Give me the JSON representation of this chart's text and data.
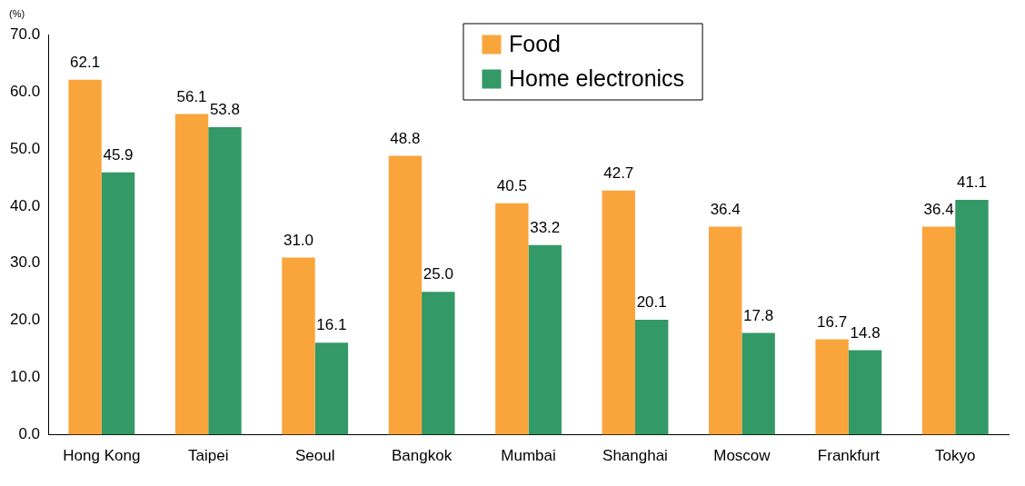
{
  "chart_data": {
    "type": "bar",
    "ylabel": "(%)",
    "categories": [
      "Hong Kong",
      "Taipei",
      "Seoul",
      "Bangkok",
      "Mumbai",
      "Shanghai",
      "Moscow",
      "Frankfurt",
      "Tokyo"
    ],
    "series": [
      {
        "name": "Food",
        "color": "#f9a53c",
        "values": [
          62.1,
          56.1,
          31.0,
          48.8,
          40.5,
          42.7,
          36.4,
          16.7,
          36.4
        ],
        "value_labels": [
          "62.1",
          "56.1",
          "31.0",
          "48.8",
          "40.5",
          "42.7",
          "36.4",
          "16.7",
          "36.4"
        ]
      },
      {
        "name": "Home electronics",
        "color": "#339966",
        "values": [
          45.9,
          53.8,
          16.1,
          25.0,
          33.2,
          20.1,
          17.8,
          14.8,
          41.1
        ],
        "value_labels": [
          "45.9",
          "53.8",
          "16.1",
          "25.0",
          "33.2",
          "20.1",
          "17.8",
          "14.8",
          "41.1"
        ]
      }
    ],
    "ylim": [
      0,
      70
    ],
    "yticks": [
      {
        "value": 0,
        "label": "0.0"
      },
      {
        "value": 10,
        "label": "10.0"
      },
      {
        "value": 20,
        "label": "20.0"
      },
      {
        "value": 30,
        "label": "30.0"
      },
      {
        "value": 40,
        "label": "40.0"
      },
      {
        "value": 50,
        "label": "50.0"
      },
      {
        "value": 60,
        "label": "60.0"
      },
      {
        "value": 70,
        "label": "70.0"
      }
    ],
    "grid": false,
    "legend": "top"
  }
}
